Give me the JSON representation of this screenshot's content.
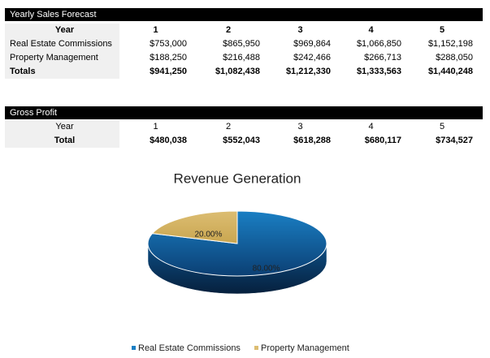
{
  "sales_table": {
    "title": "Yearly Sales Forecast",
    "header": [
      "Year",
      "1",
      "2",
      "3",
      "4",
      "5"
    ],
    "rows": [
      [
        "Real Estate Commissions",
        "$753,000",
        "$865,950",
        "$969,864",
        "$1,066,850",
        "$1,152,198"
      ],
      [
        "Property Management",
        "$188,250",
        "$216,488",
        "$242,466",
        "$266,713",
        "$288,050"
      ],
      [
        "Totals",
        "$941,250",
        "$1,082,438",
        "$1,212,330",
        "$1,333,563",
        "$1,440,248"
      ]
    ]
  },
  "profit_table": {
    "title": "Gross Profit",
    "header": [
      "Year",
      "1",
      "2",
      "3",
      "4",
      "5"
    ],
    "rows": [
      [
        "Total",
        "$480,038",
        "$552,043",
        "$618,288",
        "$680,117",
        "$734,527"
      ]
    ]
  },
  "chart_data": {
    "type": "pie",
    "title": "Revenue Generation",
    "categories": [
      "Real Estate Commissions",
      "Property Management"
    ],
    "values": [
      80,
      20
    ],
    "value_labels": [
      "80.00%",
      "20.00%"
    ],
    "colors": [
      "#1a7fc4",
      "#dcbd72"
    ],
    "legend": "bottom"
  }
}
